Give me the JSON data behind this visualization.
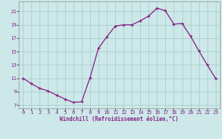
{
  "x": [
    0,
    1,
    2,
    3,
    4,
    5,
    6,
    7,
    8,
    9,
    10,
    11,
    12,
    13,
    14,
    15,
    16,
    17,
    18,
    19,
    20,
    21,
    22,
    23
  ],
  "y": [
    11,
    10.2,
    9.5,
    9.1,
    8.5,
    7.9,
    7.4,
    7.5,
    11.1,
    15.5,
    17.2,
    18.8,
    19.0,
    19.0,
    19.6,
    20.3,
    21.5,
    21.1,
    19.1,
    19.2,
    17.3,
    15.1,
    13.0,
    11.0
  ],
  "line_color": "#882288",
  "marker": "+",
  "marker_size": 3.5,
  "bg_color": "#cce8e8",
  "grid_color": "#aacccc",
  "xlabel": "Windchill (Refroidissement éolien,°C)",
  "ylabel": "",
  "xlim": [
    -0.5,
    23.5
  ],
  "ylim": [
    6.5,
    22.5
  ],
  "yticks": [
    7,
    9,
    11,
    13,
    15,
    17,
    19,
    21
  ],
  "xticks": [
    0,
    1,
    2,
    3,
    4,
    5,
    6,
    7,
    8,
    9,
    10,
    11,
    12,
    13,
    14,
    15,
    16,
    17,
    18,
    19,
    20,
    21,
    22,
    23
  ],
  "axis_fontsize": 5.5,
  "tick_fontsize": 5.2,
  "line_width": 1.0,
  "marker_color": "#882288"
}
